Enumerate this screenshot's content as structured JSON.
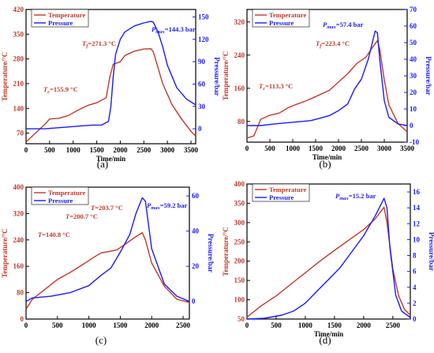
{
  "figure": {
    "colors": {
      "temperature": "#c0392b",
      "pressure": "#1a1aff",
      "axis": "#000000"
    }
  },
  "chart_data": [
    {
      "panel": "(a)",
      "type": "line",
      "xlabel": "Time/min",
      "ylabel_left": "Temperature/°C",
      "ylabel_right": "Pressure/bar",
      "xlim": [
        0,
        3600
      ],
      "ylim_left": [
        40,
        420
      ],
      "ylim_right": [
        -20,
        160
      ],
      "xticks": [
        0,
        500,
        1000,
        1500,
        2000,
        2500,
        3000,
        3500
      ],
      "yticks_left": [
        70,
        140,
        210,
        280,
        350,
        420
      ],
      "yticks_right": [
        0,
        30,
        60,
        90,
        120,
        150
      ],
      "legend": [
        "Temperature",
        "Pressure"
      ],
      "legend_position": "top-left",
      "series": [
        {
          "name": "Temperature",
          "axis": "left",
          "x": [
            0,
            200,
            400,
            500,
            700,
            900,
            1100,
            1300,
            1500,
            1700,
            1780,
            1850,
            2000,
            2100,
            2300,
            2500,
            2650,
            2700,
            2900,
            3100,
            3300,
            3500,
            3600
          ],
          "y": [
            45,
            70,
            95,
            110,
            112,
            120,
            135,
            148,
            156,
            170,
            230,
            265,
            272,
            290,
            302,
            308,
            309,
            300,
            210,
            150,
            110,
            75,
            62
          ]
        },
        {
          "name": "Pressure",
          "axis": "right",
          "x": [
            0,
            400,
            800,
            1000,
            1200,
            1400,
            1600,
            1750,
            1800,
            1850,
            1900,
            2000,
            2100,
            2300,
            2500,
            2650,
            2700,
            2800,
            2900,
            3000,
            3200,
            3400,
            3600
          ],
          "y": [
            0,
            0,
            2,
            3,
            4,
            5,
            5,
            10,
            30,
            70,
            100,
            120,
            130,
            138,
            142,
            144,
            143,
            130,
            110,
            85,
            55,
            40,
            32
          ]
        }
      ],
      "annotations": [
        {
          "text": "T",
          "sub": "c",
          "rest": "=155.9 °C",
          "color": "red"
        },
        {
          "text": "T",
          "sub": "f",
          "rest": "=271.3 °C",
          "color": "red"
        },
        {
          "text": "P",
          "sub": "max",
          "rest": "=144.3 bar",
          "color": "blue"
        }
      ]
    },
    {
      "panel": "(b)",
      "type": "line",
      "xlabel": "Time/min",
      "ylabel_left": "Temperature/°C",
      "ylabel_right": "Pressure/bar",
      "xlim": [
        0,
        3500
      ],
      "ylim_left": [
        30,
        350
      ],
      "ylim_right": [
        -10,
        70
      ],
      "xticks": [
        0,
        500,
        1000,
        1500,
        2000,
        2500,
        3000,
        3500
      ],
      "yticks_left": [
        80,
        160,
        240,
        320
      ],
      "yticks_right": [
        -10,
        0,
        10,
        20,
        30,
        40,
        50,
        60,
        70
      ],
      "legend": [
        "Temperature",
        "Pressure"
      ],
      "legend_position": "top-left",
      "series": [
        {
          "name": "Temperature",
          "axis": "left",
          "x": [
            0,
            150,
            300,
            500,
            700,
            900,
            1100,
            1300,
            1500,
            1800,
            2000,
            2200,
            2400,
            2600,
            2750,
            2850,
            2900,
            3000,
            3100,
            3300,
            3500
          ],
          "y": [
            40,
            45,
            85,
            95,
            100,
            113,
            122,
            130,
            140,
            155,
            175,
            195,
            220,
            235,
            260,
            275,
            255,
            180,
            120,
            75,
            55
          ]
        },
        {
          "name": "Pressure",
          "axis": "right",
          "x": [
            0,
            300,
            600,
            1000,
            1400,
            1800,
            2000,
            2200,
            2350,
            2500,
            2650,
            2800,
            2850,
            2900,
            3000,
            3100,
            3300,
            3500
          ],
          "y": [
            0,
            0,
            1,
            2,
            3,
            6,
            9,
            13,
            22,
            28,
            40,
            57,
            56,
            40,
            15,
            5,
            1,
            0
          ]
        }
      ],
      "annotations": [
        {
          "text": "T",
          "sub": "c",
          "rest": "=113.3 °C",
          "color": "red"
        },
        {
          "text": "T",
          "sub": "f",
          "rest": "=223.4 °C",
          "color": "red"
        },
        {
          "text": "P",
          "sub": "max",
          "rest": "=57.4 bar",
          "color": "blue"
        }
      ]
    },
    {
      "panel": "(c)",
      "type": "line",
      "xlabel": "",
      "ylabel_left": "Temperature/°C",
      "ylabel_right": "Pressure/bar",
      "xlim": [
        0,
        2600
      ],
      "ylim_left": [
        0,
        400
      ],
      "ylim_right": [
        -10,
        65
      ],
      "xticks": [
        0,
        500,
        1000,
        1500,
        2000,
        2500
      ],
      "yticks_left": [
        0,
        80,
        160,
        240,
        320,
        400
      ],
      "yticks_right": [
        0,
        20,
        40,
        60
      ],
      "legend": [
        "Temperature",
        "Pressure"
      ],
      "legend_position": "top-left",
      "series": [
        {
          "name": "Temperature",
          "axis": "left",
          "x": [
            0,
            100,
            300,
            500,
            700,
            900,
            1100,
            1200,
            1300,
            1450,
            1600,
            1750,
            1850,
            1900,
            2000,
            2200,
            2400,
            2600
          ],
          "y": [
            30,
            60,
            90,
            120,
            141,
            165,
            190,
            201,
            204,
            210,
            230,
            250,
            262,
            240,
            170,
            100,
            60,
            50
          ]
        },
        {
          "name": "Pressure",
          "axis": "right",
          "x": [
            0,
            100,
            400,
            700,
            1000,
            1200,
            1350,
            1500,
            1650,
            1750,
            1850,
            1900,
            2000,
            2200,
            2400,
            2600
          ],
          "y": [
            0,
            2,
            3,
            5,
            9,
            15,
            19,
            28,
            38,
            50,
            59,
            57,
            30,
            10,
            3,
            0
          ]
        }
      ],
      "annotations": [
        {
          "text": "T",
          "sub": "",
          "rest": "=140.8 °C",
          "color": "red"
        },
        {
          "text": "T",
          "sub": "",
          "rest": "=200.7 °C",
          "color": "red"
        },
        {
          "text": "T",
          "sub": "",
          "rest": "=203.7 °C",
          "color": "red"
        },
        {
          "text": "P",
          "sub": "max",
          "rest": "=59.2 bar",
          "color": "blue"
        }
      ]
    },
    {
      "panel": "(d)",
      "type": "line",
      "xlabel": "Time/min",
      "ylabel_left": "Temperature/°C",
      "ylabel_right": "Pressure/bar",
      "xlim": [
        0,
        2800
      ],
      "ylim_left": [
        50,
        400
      ],
      "ylim_right": [
        0,
        17
      ],
      "xticks": [
        0,
        500,
        1000,
        1500,
        2000,
        2500
      ],
      "yticks_left": [
        50,
        100,
        150,
        200,
        250,
        300,
        350,
        400
      ],
      "yticks_right": [
        0,
        2,
        4,
        6,
        8,
        10,
        12,
        14,
        16
      ],
      "legend": [
        "Temperature",
        "Pressure"
      ],
      "legend_position": "top-left",
      "series": [
        {
          "name": "Temperature",
          "axis": "left",
          "x": [
            0,
            250,
            500,
            750,
            1000,
            1250,
            1500,
            1750,
            2000,
            2200,
            2350,
            2400,
            2500,
            2600,
            2700,
            2800
          ],
          "y": [
            55,
            85,
            110,
            140,
            170,
            200,
            228,
            255,
            282,
            310,
            340,
            300,
            180,
            110,
            75,
            60
          ]
        },
        {
          "name": "Pressure",
          "axis": "right",
          "x": [
            0,
            300,
            600,
            800,
            1000,
            1200,
            1400,
            1600,
            1800,
            2000,
            2200,
            2350,
            2400,
            2450,
            2550,
            2650,
            2800
          ],
          "y": [
            0,
            0.1,
            0.5,
            1,
            2,
            3.5,
            5,
            6.5,
            8.5,
            10.5,
            13,
            15.2,
            14,
            9,
            3,
            1,
            0.2
          ]
        }
      ],
      "annotations": [
        {
          "text": "P",
          "sub": "max",
          "rest": "=15.2 bar",
          "color": "blue"
        }
      ]
    }
  ]
}
